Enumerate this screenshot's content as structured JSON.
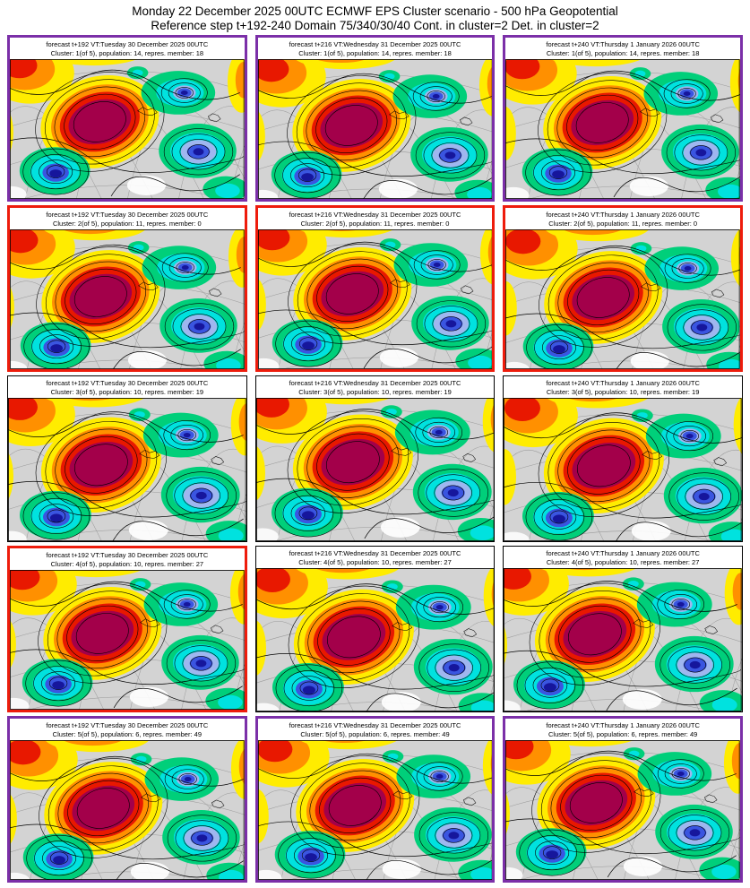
{
  "title": {
    "line1": "Monday 22 December 2025 00UTC ECMWF EPS Cluster scenario - 500 hPa Geopotential",
    "line2": "Reference step t+192-240 Domain 75/340/30/40 Cont. in cluster=2 Det. in cluster=2"
  },
  "palette": {
    "border_purple": "#7b2fa8",
    "border_red": "#ee1c0c",
    "border_black": "#000000",
    "map_bg": "#d3d3d3",
    "land_white": "#ffffff",
    "yellow": "#ffec00",
    "orange": "#ff9000",
    "red": "#e81800",
    "maroon": "#a3004a",
    "green": "#00cf7a",
    "cyan": "#00e2df",
    "pale_blue": "#9fb6ef",
    "blue": "#3a55e0",
    "dark_blue": "#16169c",
    "contour": "#000000",
    "graticule": "#9a9a9a"
  },
  "panels": [
    {
      "forecast_line": "forecast t+192 VT:Tuesday 30 December 2025 00UTC",
      "cluster_line": "Cluster: 1(of 5), population: 14, repres. member: 18",
      "border": "purple"
    },
    {
      "forecast_line": "forecast t+216 VT:Wednesday 31 December 2025 00UTC",
      "cluster_line": "Cluster: 1(of 5), population: 14, repres. member: 18",
      "border": "purple"
    },
    {
      "forecast_line": "forecast t+240 VT:Thursday 1 January 2026 00UTC",
      "cluster_line": "Cluster: 1(of 5), population: 14, repres. member: 18",
      "border": "purple"
    },
    {
      "forecast_line": "forecast t+192 VT:Tuesday 30 December 2025 00UTC",
      "cluster_line": "Cluster: 2(of 5), population: 11, repres. member: 0",
      "border": "red"
    },
    {
      "forecast_line": "forecast t+216 VT:Wednesday 31 December 2025 00UTC",
      "cluster_line": "Cluster: 2(of 5), population: 11, repres. member: 0",
      "border": "red"
    },
    {
      "forecast_line": "forecast t+240 VT:Thursday 1 January 2026 00UTC",
      "cluster_line": "Cluster: 2(of 5), population: 11, repres. member: 0",
      "border": "red"
    },
    {
      "forecast_line": "forecast t+192 VT:Tuesday 30 December 2025 00UTC",
      "cluster_line": "Cluster: 3(of 5), population: 10, repres. member: 19",
      "border": "black"
    },
    {
      "forecast_line": "forecast t+216 VT:Wednesday 31 December 2025 00UTC",
      "cluster_line": "Cluster: 3(of 5), population: 10, repres. member: 19",
      "border": "black"
    },
    {
      "forecast_line": "forecast t+240 VT:Thursday 1 January 2026 00UTC",
      "cluster_line": "Cluster: 3(of 5), population: 10, repres. member: 19",
      "border": "black"
    },
    {
      "forecast_line": "forecast t+192 VT:Tuesday 30 December 2025 00UTC",
      "cluster_line": "Cluster: 4(of 5), population: 10, repres. member: 27",
      "border": "red"
    },
    {
      "forecast_line": "forecast t+216 VT:Wednesday 31 December 2025 00UTC",
      "cluster_line": "Cluster: 4(of 5), population: 10, repres. member: 27",
      "border": "black"
    },
    {
      "forecast_line": "forecast t+240 VT:Thursday 1 January 2026 00UTC",
      "cluster_line": "Cluster: 4(of 5), population: 10, repres. member: 27",
      "border": "black"
    },
    {
      "forecast_line": "forecast t+192 VT:Tuesday 30 December 2025 00UTC",
      "cluster_line": "Cluster: 5(of 5), population: 6, repres. member: 49",
      "border": "purple"
    },
    {
      "forecast_line": "forecast t+216 VT:Wednesday 31 December 2025 00UTC",
      "cluster_line": "Cluster: 5(of 5), population: 6, repres. member: 49",
      "border": "purple"
    },
    {
      "forecast_line": "forecast t+240 VT:Thursday 1 January 2026 00UTC",
      "cluster_line": "Cluster: 5(of 5), population: 6, repres. member: 49",
      "border": "purple"
    }
  ]
}
